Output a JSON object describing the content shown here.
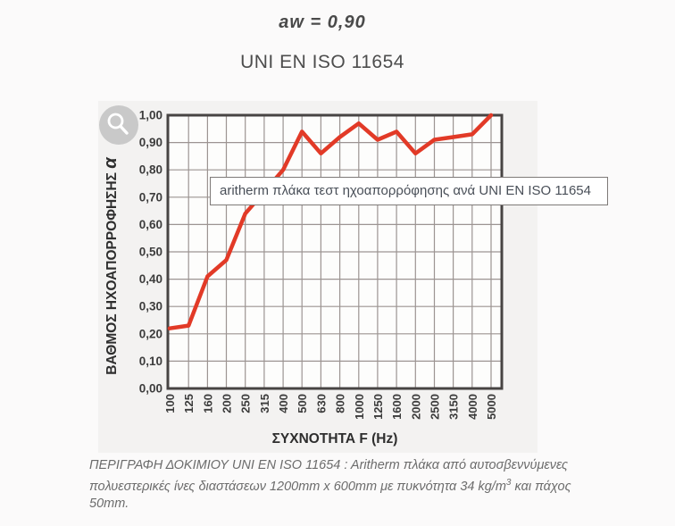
{
  "page": {
    "background": "#fbfafa"
  },
  "header": {
    "aw_label": "aw = 0,90",
    "standard_label": "UNI EN ISO 11654"
  },
  "figure": {
    "zoom_icon": "magnifier",
    "zoom_icon_color": "#c9c9c9"
  },
  "tooltip": {
    "text": "aritherm πλάκα τεστ ηχοαπορρόφησης ανά UNI EN ISO 11654"
  },
  "caption": {
    "text_main": "ΠΕΡΙΓΡΑΦΗ ΔΟΚΙΜΙΟΥ UNI EN ISO 11654 : Aritherm πλάκα από αυτοσβεννύμενες πολυεστερικές ίνες διαστάσεων 1200mm x 600mm με πυκνότητα 34 kg/m",
    "sup": "3",
    "text_tail": " και πάχος 50mm."
  },
  "chart_data": {
    "type": "line",
    "title": "",
    "categories": [
      "100",
      "125",
      "160",
      "200",
      "250",
      "315",
      "400",
      "500",
      "630",
      "800",
      "1000",
      "1250",
      "1600",
      "2000",
      "2500",
      "3150",
      "4000",
      "5000"
    ],
    "values": [
      0.22,
      0.23,
      0.41,
      0.47,
      0.64,
      0.72,
      0.8,
      0.94,
      0.86,
      0.92,
      0.97,
      0.91,
      0.94,
      0.86,
      0.91,
      0.92,
      0.93,
      1.0
    ],
    "xlabel": "ΣΥΧΝΟΤΗΤΑ F (Hz)",
    "ylabel": "ΒΑΘΜΟΣ ΗΧΟΑΠΟΡΡΟΦΗΣΗΣ",
    "ylabel_symbol": "α",
    "ylim": [
      0,
      1
    ],
    "ytick_step": 0.1,
    "ytick_labels": [
      "0,00",
      "0,10",
      "0,20",
      "0,30",
      "0,40",
      "0,50",
      "0,60",
      "0,70",
      "0,80",
      "0,90",
      "1,00"
    ],
    "grid": true,
    "legend": "none",
    "line_color": "#e23a27",
    "grid_color": "#9c9492",
    "border_color": "#474443",
    "plot_background": "#fdfdfc",
    "tick_color": "#3c3c3c"
  }
}
